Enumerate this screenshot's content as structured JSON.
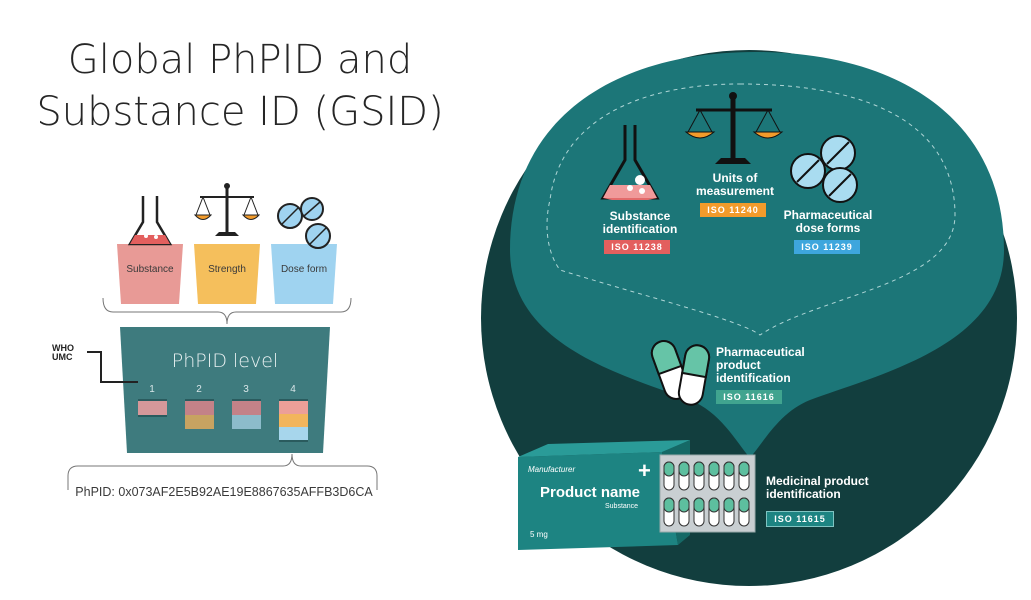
{
  "title": {
    "line1": "Global PhPID and",
    "line2": "Substance ID (GSID)"
  },
  "left_diagram": {
    "cups": [
      {
        "label": "Substance",
        "color": "#e89a96"
      },
      {
        "label": "Strength",
        "color": "#f5bf5c"
      },
      {
        "label": "Dose form",
        "color": "#9fd3f0"
      }
    ],
    "who_label": [
      "WHO",
      "UMC"
    ],
    "level_title": "PhPID level",
    "levels": [
      "1",
      "2",
      "3",
      "4"
    ],
    "phpid_code": "PhPID: 0x073AF2E5B92AE19E8867635AFFB3D6CA",
    "level_box_color": "#3e7b7e"
  },
  "right_diagram": {
    "colors": {
      "outer": "#123e3e",
      "inner": "#1c7678",
      "red": "#e35f5e",
      "orange": "#f29b2b",
      "blue": "#3ea6dd",
      "green": "#40a48f"
    },
    "substance": {
      "lines": [
        "Substance",
        "identification"
      ],
      "iso": "ISO 11238"
    },
    "units": {
      "lines": [
        "Units of",
        "measurement"
      ],
      "iso": "ISO 11240"
    },
    "dose_forms": {
      "lines": [
        "Pharmaceutical",
        "dose forms"
      ],
      "iso": "ISO 11239"
    },
    "pharma_product": {
      "lines": [
        "Pharmaceutical",
        "product",
        "identification"
      ],
      "iso": "ISO 11616"
    },
    "medicinal_product": {
      "lines": [
        "Medicinal product",
        "identification"
      ],
      "iso": "ISO 11615"
    },
    "box": {
      "manufacturer": "Manufacturer",
      "product_name": "Product name",
      "substance": "Substance",
      "dose": "5 mg",
      "plus": "+"
    }
  }
}
